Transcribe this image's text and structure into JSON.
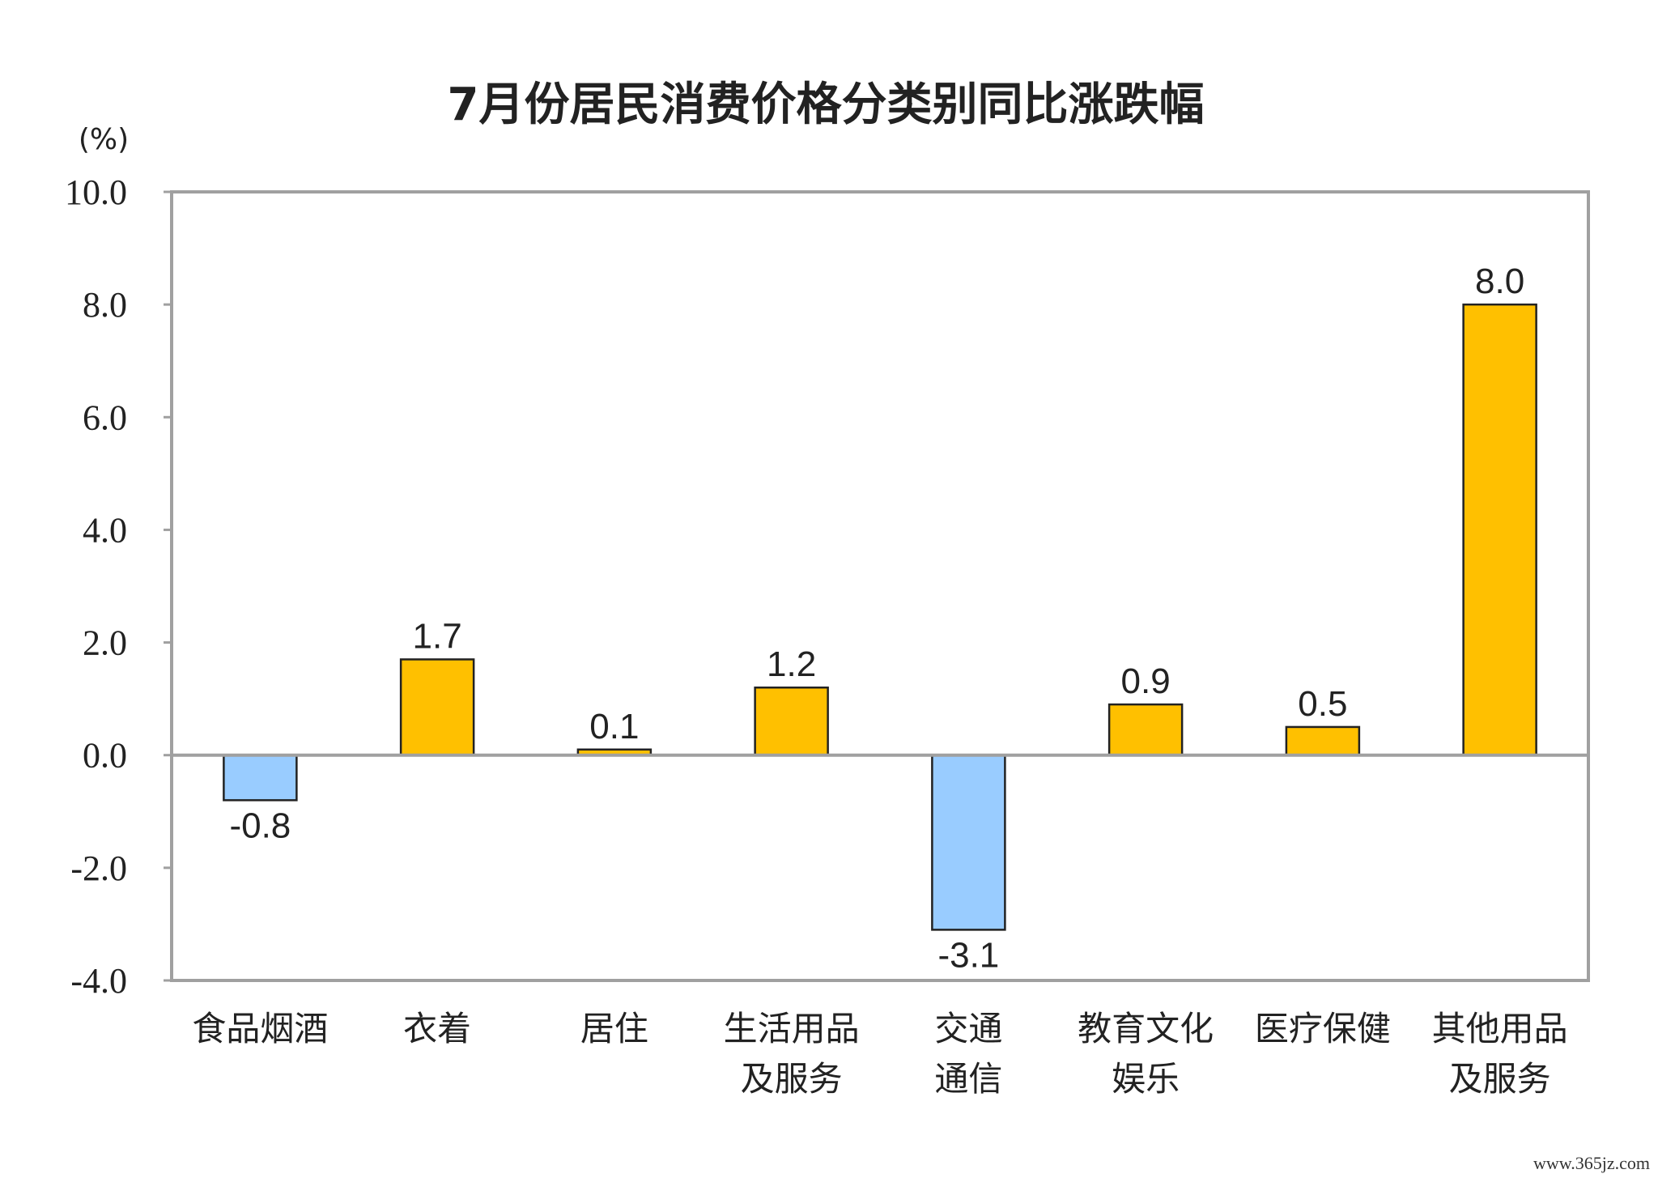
{
  "chart_data": {
    "type": "bar",
    "title": "7月份居民消费价格分类别同比涨跌幅",
    "ylabel": "(%)",
    "xlabel": "",
    "ylim": [
      -4,
      10
    ],
    "yticks": [
      "10.0",
      "8.0",
      "6.0",
      "4.0",
      "2.0",
      "0.0",
      "-2.0",
      "-4.0"
    ],
    "ytick_values": [
      10,
      8,
      6,
      4,
      2,
      0,
      -2,
      -4
    ],
    "categories": [
      [
        "食品烟酒"
      ],
      [
        "衣着"
      ],
      [
        "居住"
      ],
      [
        "生活用品",
        "及服务"
      ],
      [
        "交通",
        "通信"
      ],
      [
        "教育文化",
        "娱乐"
      ],
      [
        "医疗保健"
      ],
      [
        "其他用品",
        "及服务"
      ]
    ],
    "values": [
      -0.8,
      1.7,
      0.1,
      1.2,
      -3.1,
      0.9,
      0.5,
      8.0
    ],
    "value_labels": [
      "-0.8",
      "1.7",
      "0.1",
      "1.2",
      "-3.1",
      "0.9",
      "0.5",
      "8.0"
    ],
    "positive_color": "#FFC000",
    "negative_color": "#99CCFF",
    "bar_edge_color": "#222222",
    "frame_color": "#A0A0A0",
    "grid": false,
    "legend": "none"
  },
  "watermark": "www.365jz.com"
}
